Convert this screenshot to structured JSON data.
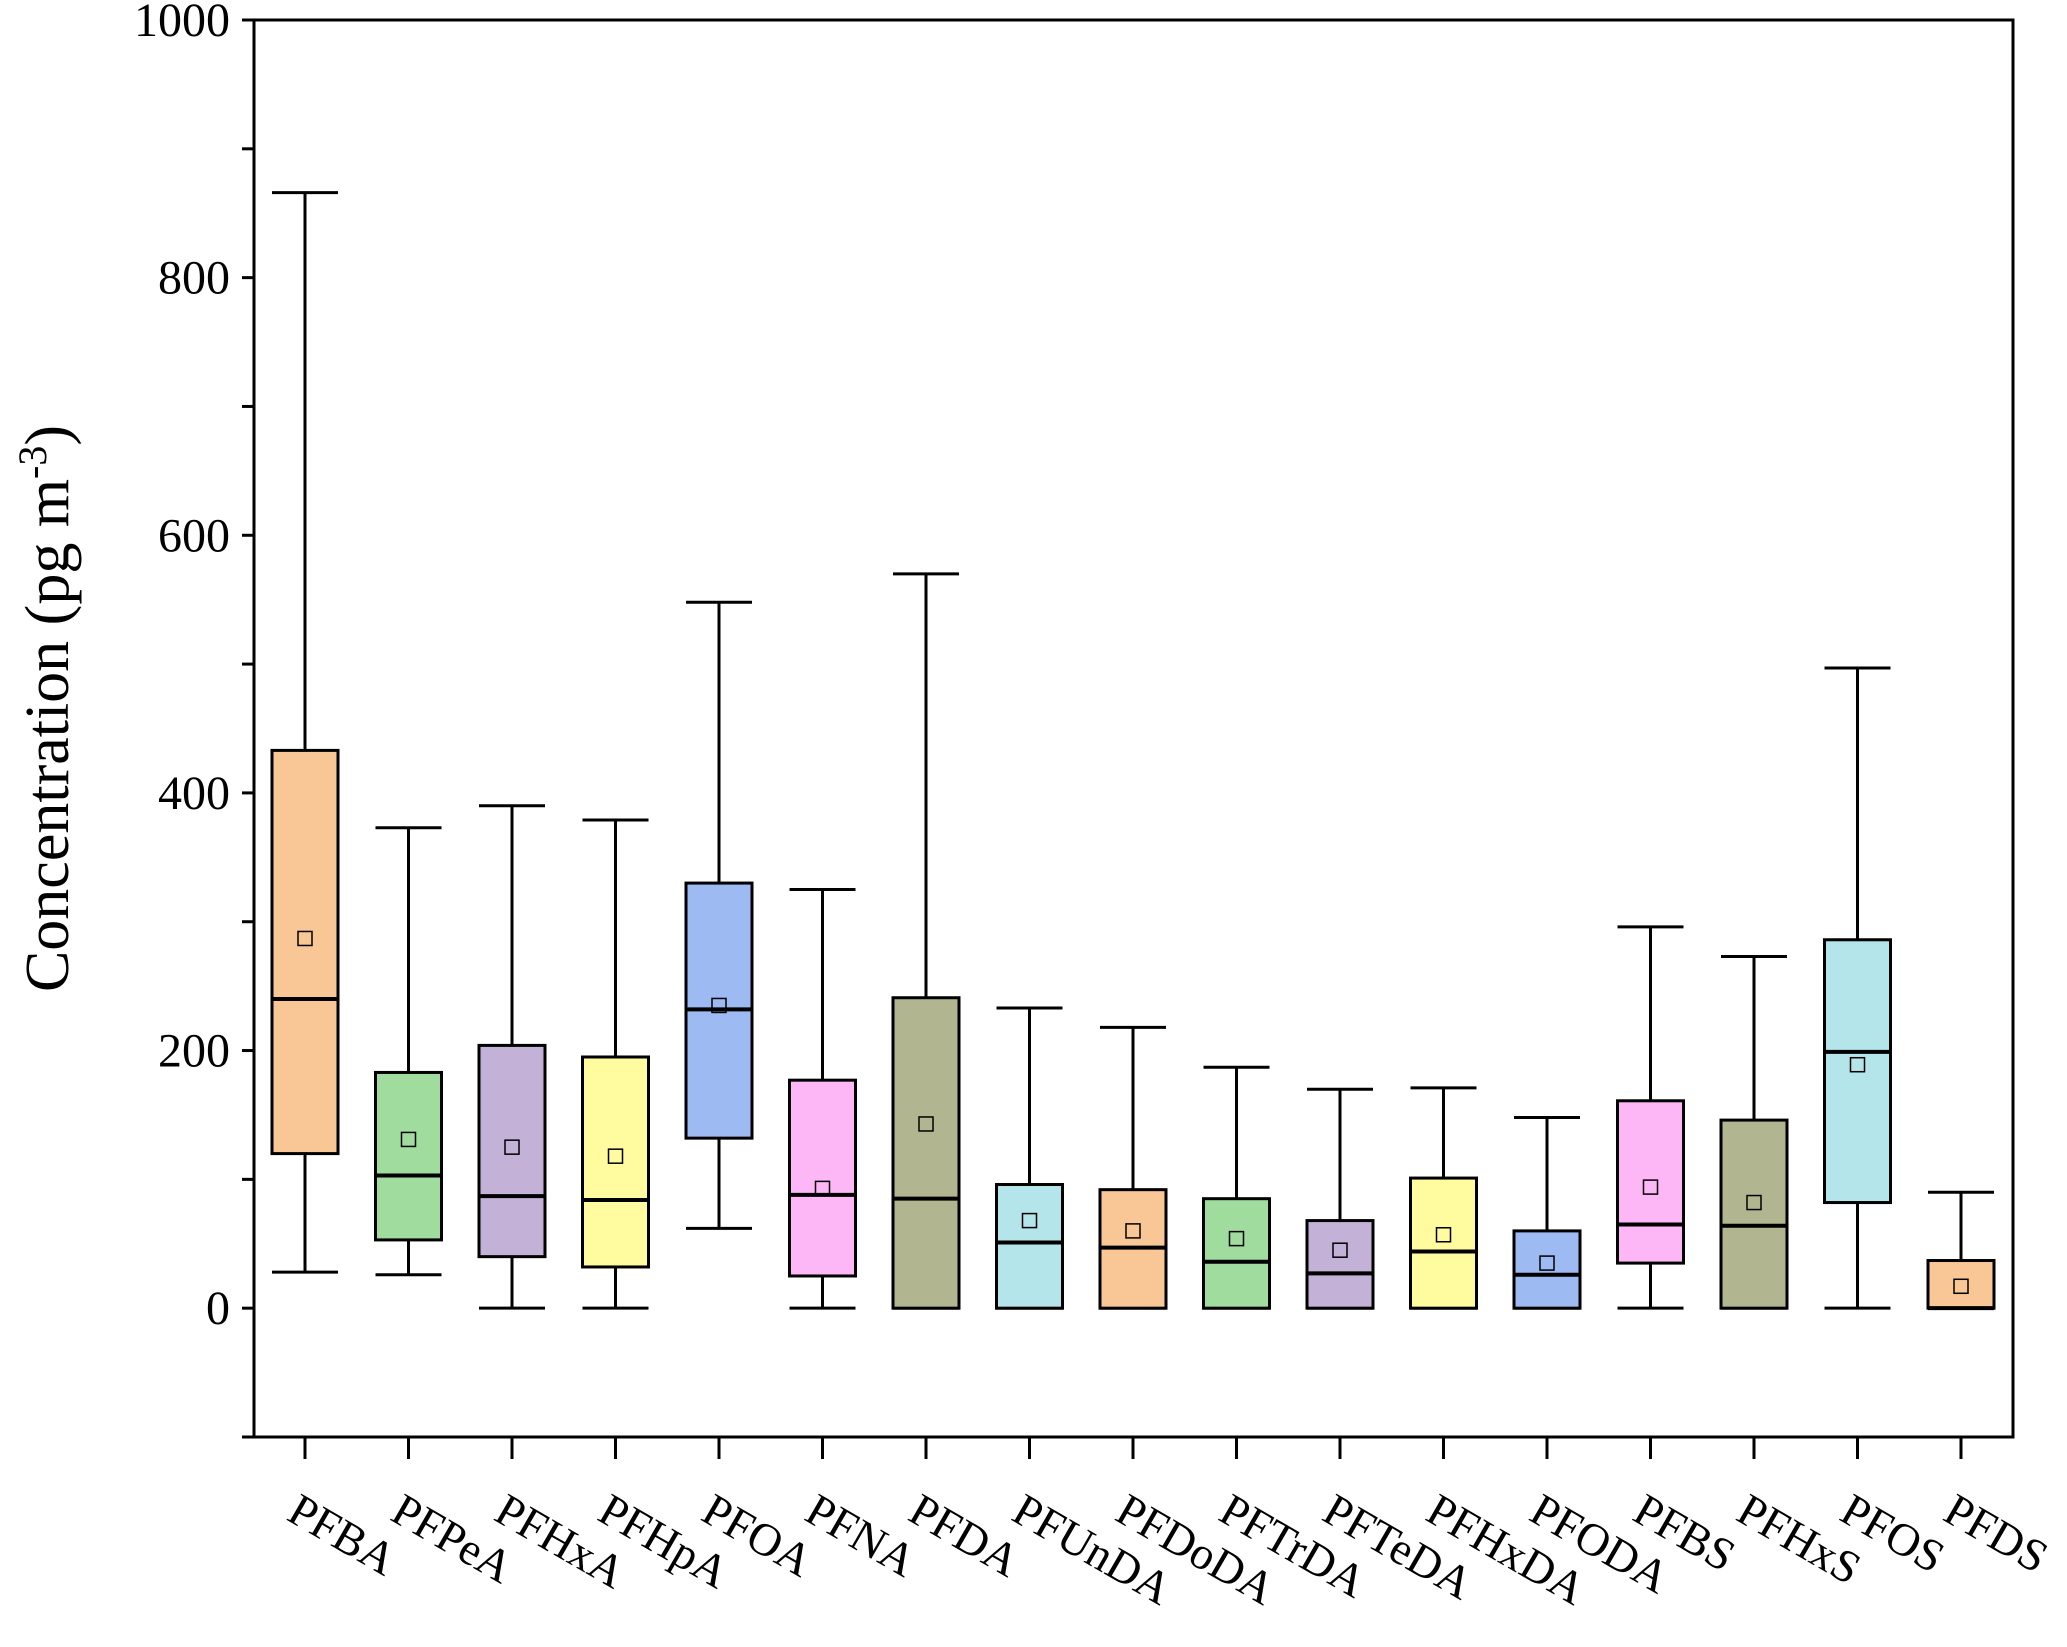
{
  "chart_data": {
    "type": "box",
    "ylabel": "Concentration (pg m⁻³)",
    "ylabel_parts": {
      "main": "Concentration (pg m",
      "superscript": "-3",
      "end": ")"
    },
    "xlabel": "",
    "ylim": [
      -100,
      1000
    ],
    "yticks": [
      0,
      200,
      400,
      600,
      800,
      1000
    ],
    "yticks_labels": [
      "0",
      "200",
      "400",
      "600",
      "800",
      "1000"
    ],
    "minor_yticks": [
      -100,
      100,
      300,
      500,
      700,
      900
    ],
    "grid": false,
    "legend": "none",
    "categories": [
      "PFBA",
      "PFPeA",
      "PFHxA",
      "PFHpA",
      "PFOA",
      "PFNA",
      "PFDA",
      "PFUnDA",
      "PFDoDA",
      "PFTrDA",
      "PFTeDA",
      "PFHxDA",
      "PFODA",
      "PFBS",
      "PFHxS",
      "PFOS",
      "PFDS"
    ],
    "boxes": [
      {
        "name": "PFBA",
        "min": 28,
        "q1": 120,
        "median": 240,
        "q3": 433,
        "max": 866,
        "mean": 287,
        "color": "#F9C696"
      },
      {
        "name": "PFPeA",
        "min": 26,
        "q1": 53,
        "median": 103,
        "q3": 183,
        "max": 373,
        "mean": 131,
        "color": "#A0DC9E"
      },
      {
        "name": "PFHxA",
        "min": 0,
        "q1": 40,
        "median": 87,
        "q3": 204,
        "max": 390,
        "mean": 125,
        "color": "#C3B1D8"
      },
      {
        "name": "PFHpA",
        "min": 0,
        "q1": 32,
        "median": 84,
        "q3": 195,
        "max": 379,
        "mean": 118,
        "color": "#FFFB9E"
      },
      {
        "name": "PFOA",
        "min": 62,
        "q1": 132,
        "median": 232,
        "q3": 330,
        "max": 548,
        "mean": 235,
        "color": "#9DBAF2"
      },
      {
        "name": "PFNA",
        "min": 0,
        "q1": 25,
        "median": 88,
        "q3": 177,
        "max": 325,
        "mean": 93,
        "color": "#FDB7F7"
      },
      {
        "name": "PFDA",
        "min": 0,
        "q1": 0,
        "median": 85,
        "q3": 241,
        "max": 570,
        "mean": 143,
        "color": "#B2B690"
      },
      {
        "name": "PFUnDA",
        "min": 0,
        "q1": 0,
        "median": 51,
        "q3": 96,
        "max": 233,
        "mean": 68,
        "color": "#B4E5EA"
      },
      {
        "name": "PFDoDA",
        "min": 0,
        "q1": 0,
        "median": 47,
        "q3": 92,
        "max": 218,
        "mean": 60,
        "color": "#F9C696"
      },
      {
        "name": "PFTrDA",
        "min": 0,
        "q1": 0,
        "median": 36,
        "q3": 85,
        "max": 187,
        "mean": 54,
        "color": "#A0DC9E"
      },
      {
        "name": "PFTeDA",
        "min": 0,
        "q1": 0,
        "median": 27,
        "q3": 68,
        "max": 170,
        "mean": 45,
        "color": "#C3B1D8"
      },
      {
        "name": "PFHxDA",
        "min": 0,
        "q1": 0,
        "median": 44,
        "q3": 101,
        "max": 171,
        "mean": 57,
        "color": "#FFFB9E"
      },
      {
        "name": "PFODA",
        "min": 0,
        "q1": 0,
        "median": 26,
        "q3": 60,
        "max": 148,
        "mean": 35,
        "color": "#9DBAF2"
      },
      {
        "name": "PFBS",
        "min": 0,
        "q1": 35,
        "median": 65,
        "q3": 161,
        "max": 296,
        "mean": 94,
        "color": "#FDB7F7"
      },
      {
        "name": "PFHxS",
        "min": 0,
        "q1": 0,
        "median": 64,
        "q3": 146,
        "max": 273,
        "mean": 82,
        "color": "#B2B690"
      },
      {
        "name": "PFOS",
        "min": 0,
        "q1": 82,
        "median": 199,
        "q3": 286,
        "max": 497,
        "mean": 189,
        "color": "#B4E5EA"
      },
      {
        "name": "PFDS",
        "min": 0,
        "q1": 0,
        "median": 0,
        "q3": 37,
        "max": 90,
        "mean": 17,
        "color": "#F9C696"
      }
    ]
  }
}
